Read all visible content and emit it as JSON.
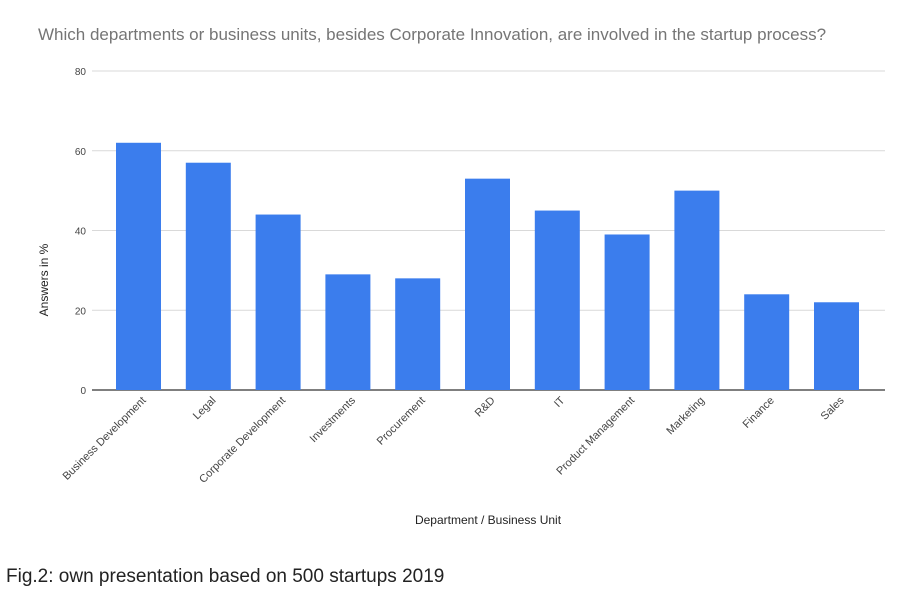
{
  "chart_data": {
    "type": "bar",
    "title": "Which departments or business units, besides Corporate Innovation, are involved in the startup process?",
    "xlabel": "Department / Business Unit",
    "ylabel": "Answers in %",
    "categories": [
      "Business Development",
      "Legal",
      "Corporate Development",
      "Investments",
      "Procurement",
      "R&D",
      "IT",
      "Product Management",
      "Marketing",
      "Finance",
      "Sales"
    ],
    "values": [
      62,
      57,
      44,
      29,
      28,
      53,
      45,
      39,
      50,
      24,
      22
    ],
    "ylim": [
      0,
      80
    ],
    "yticks": [
      0,
      20,
      40,
      60,
      80
    ],
    "grid": true,
    "legend": "none",
    "bar_color": "#3b7ded"
  },
  "caption": "Fig.2: own presentation based on 500 startups 2019"
}
